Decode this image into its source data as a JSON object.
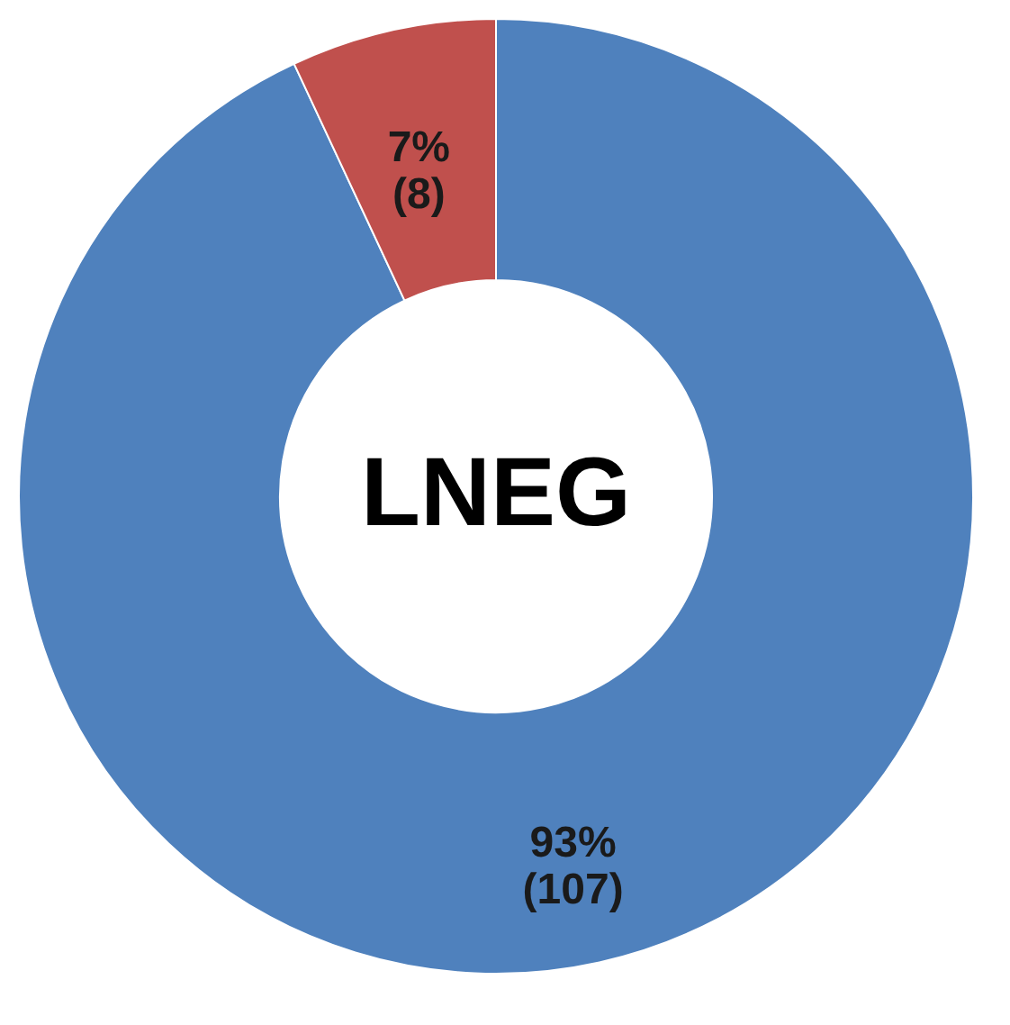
{
  "chart_data": {
    "type": "donut",
    "categories": [
      null,
      null
    ],
    "values": [
      107,
      8
    ],
    "colors": [
      "#4f81bd",
      "#c0504d"
    ],
    "value_labels": [
      "93%\n(107)",
      "7%\n(8)"
    ],
    "annotations": [
      "LNEG"
    ]
  }
}
